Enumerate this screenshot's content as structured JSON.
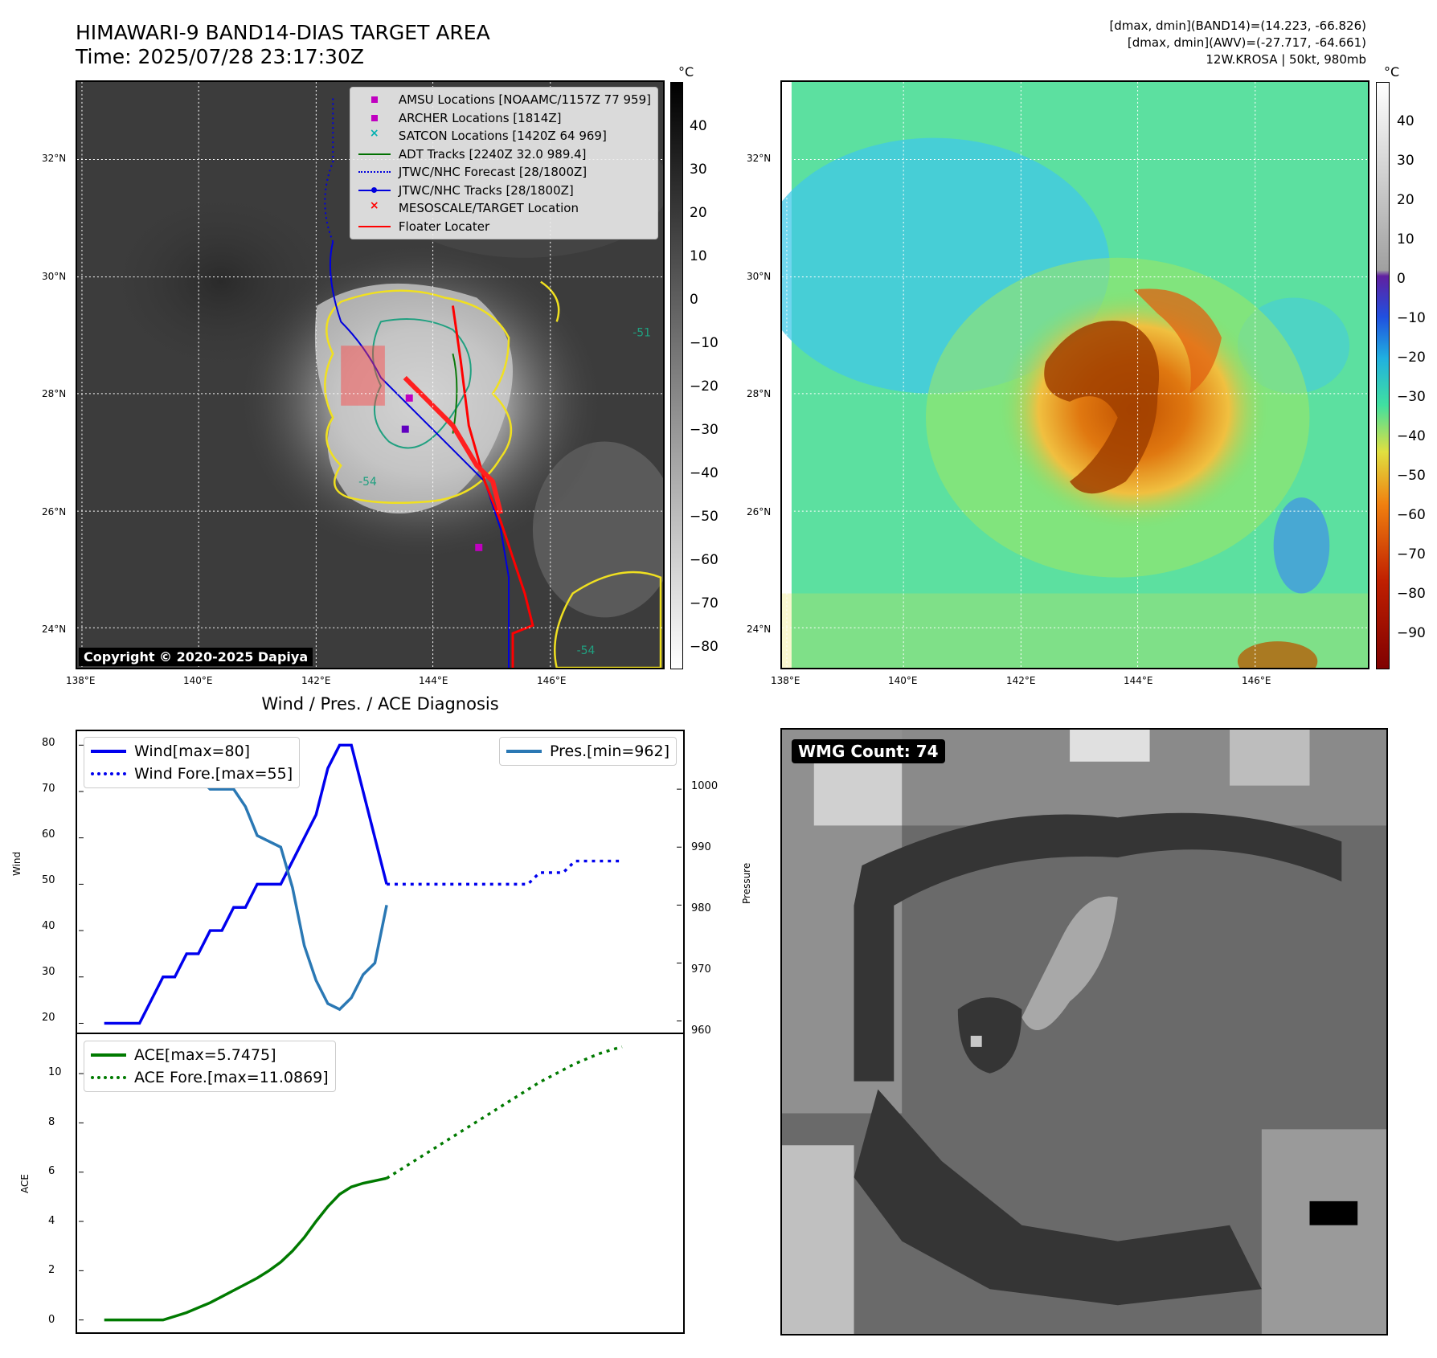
{
  "header": {
    "title_line1": "HIMAWARI-9 BAND14-DIAS TARGET AREA",
    "title_line2": "Time: 2025/07/28 23:17:30Z",
    "info_line1": "[dmax, dmin](BAND14)=(14.223, -66.826)",
    "info_line2": "[dmax, dmin](AWV)=(-27.717, -64.661)",
    "info_line3": "12W.KROSA | 50kt, 980mb"
  },
  "map": {
    "lon_ticks": [
      "138°E",
      "140°E",
      "142°E",
      "144°E",
      "146°E"
    ],
    "lat_ticks": [
      "32°N",
      "30°N",
      "28°N",
      "26°N",
      "24°N"
    ],
    "copyright": "Copyright © 2020-2025 Dapiya",
    "contour_label_1": "-54",
    "contour_label_2": "-54",
    "contour_label_3": "-51"
  },
  "legend": {
    "items": [
      {
        "label": "AMSU Locations [NOAAMC/1157Z 77 959]",
        "color": "#c000c0",
        "symbol": "square"
      },
      {
        "label": "ARCHER Locations [1814Z]",
        "color": "#c000c0",
        "symbol": "square"
      },
      {
        "label": "SATCON Locations [1420Z 64 969]",
        "color": "#00b0b0",
        "symbol": "x"
      },
      {
        "label": "ADT Tracks [2240Z 32.0 989.4]",
        "color": "#007000",
        "symbol": "line"
      },
      {
        "label": "JTWC/NHC Forecast [28/1800Z]",
        "color": "#0000dd",
        "symbol": "dotted"
      },
      {
        "label": "JTWC/NHC Tracks [28/1800Z]",
        "color": "#0000dd",
        "symbol": "line-dot"
      },
      {
        "label": "MESOSCALE/TARGET Location",
        "color": "#ff0000",
        "symbol": "x"
      },
      {
        "label": "Floater Locater",
        "color": "#ff0000",
        "symbol": "line"
      }
    ]
  },
  "colorbar_left": {
    "unit": "°C",
    "ticks": [
      "40",
      "30",
      "20",
      "10",
      "0",
      "−10",
      "−20",
      "−30",
      "−40",
      "−50",
      "−60",
      "−70",
      "−80"
    ]
  },
  "colorbar_right": {
    "unit": "°C",
    "ticks": [
      "40",
      "30",
      "20",
      "10",
      "0",
      "−10",
      "−20",
      "−30",
      "−40",
      "−50",
      "−60",
      "−70",
      "−80",
      "−90"
    ]
  },
  "diagnosis": {
    "title": "Wind / Pres. / ACE Diagnosis",
    "wind_ylabel": "Wind",
    "pres_ylabel": "Pressure",
    "ace_ylabel": "ACE",
    "legend_wind": "Wind[max=80]",
    "legend_wind_fore": "Wind Fore.[max=55]",
    "legend_pres": "Pres.[min=962]",
    "legend_ace": "ACE[max=5.7475]",
    "legend_ace_fore": "ACE Fore.[max=11.0869]",
    "wind_yticks": [
      "80",
      "70",
      "60",
      "50",
      "40",
      "30",
      "20"
    ],
    "pres_yticks": [
      "1000",
      "990",
      "980",
      "970",
      "960"
    ],
    "ace_yticks": [
      "10",
      "8",
      "6",
      "4",
      "2",
      "0"
    ],
    "colors": {
      "wind": "#0000ee",
      "pres": "#2a78b4",
      "ace": "#007a00"
    }
  },
  "wmg": {
    "label": "WMG Count: 74"
  },
  "chart_data": [
    {
      "type": "line",
      "title": "Wind / Pres. / ACE Diagnosis",
      "ylabel": "Wind",
      "ylim": [
        18,
        83
      ],
      "series": [
        {
          "name": "Wind[max=80]",
          "values": [
            20,
            20,
            20,
            20,
            25,
            30,
            30,
            35,
            35,
            40,
            40,
            45,
            45,
            50,
            50,
            50,
            55,
            60,
            65,
            75,
            80,
            80,
            70,
            60,
            50
          ]
        },
        {
          "name": "Wind Fore.[max=55]",
          "values": [
            50,
            50,
            50,
            50,
            50,
            50,
            50,
            50,
            50,
            50,
            50,
            50,
            50,
            52.5,
            52.5,
            52.5,
            55,
            55,
            55,
            55,
            55
          ]
        }
      ]
    },
    {
      "type": "line",
      "ylabel": "Pressure",
      "ylim": [
        958,
        1010
      ],
      "series": [
        {
          "name": "Pres.[min=962]",
          "values": [
            1008,
            1008,
            1008,
            1006,
            1006,
            1005,
            1005,
            1002,
            1002,
            1000,
            1000,
            1000,
            997,
            992,
            991,
            990,
            983,
            973,
            967,
            963,
            962,
            964,
            968,
            970,
            980
          ]
        }
      ]
    },
    {
      "type": "line",
      "ylabel": "ACE",
      "ylim": [
        -0.5,
        11.6
      ],
      "series": [
        {
          "name": "ACE[max=5.7475]",
          "values": [
            0,
            0,
            0,
            0,
            0,
            0,
            0.15,
            0.3,
            0.5,
            0.7,
            0.95,
            1.2,
            1.45,
            1.7,
            2.0,
            2.35,
            2.8,
            3.35,
            4.0,
            4.6,
            5.1,
            5.4,
            5.55,
            5.65,
            5.75
          ]
        },
        {
          "name": "ACE Fore.[max=11.0869]",
          "values": [
            5.75,
            6.05,
            6.35,
            6.65,
            6.95,
            7.25,
            7.55,
            7.85,
            8.15,
            8.45,
            8.75,
            9.05,
            9.35,
            9.65,
            9.9,
            10.15,
            10.4,
            10.6,
            10.8,
            10.95,
            11.0869
          ]
        }
      ]
    }
  ]
}
